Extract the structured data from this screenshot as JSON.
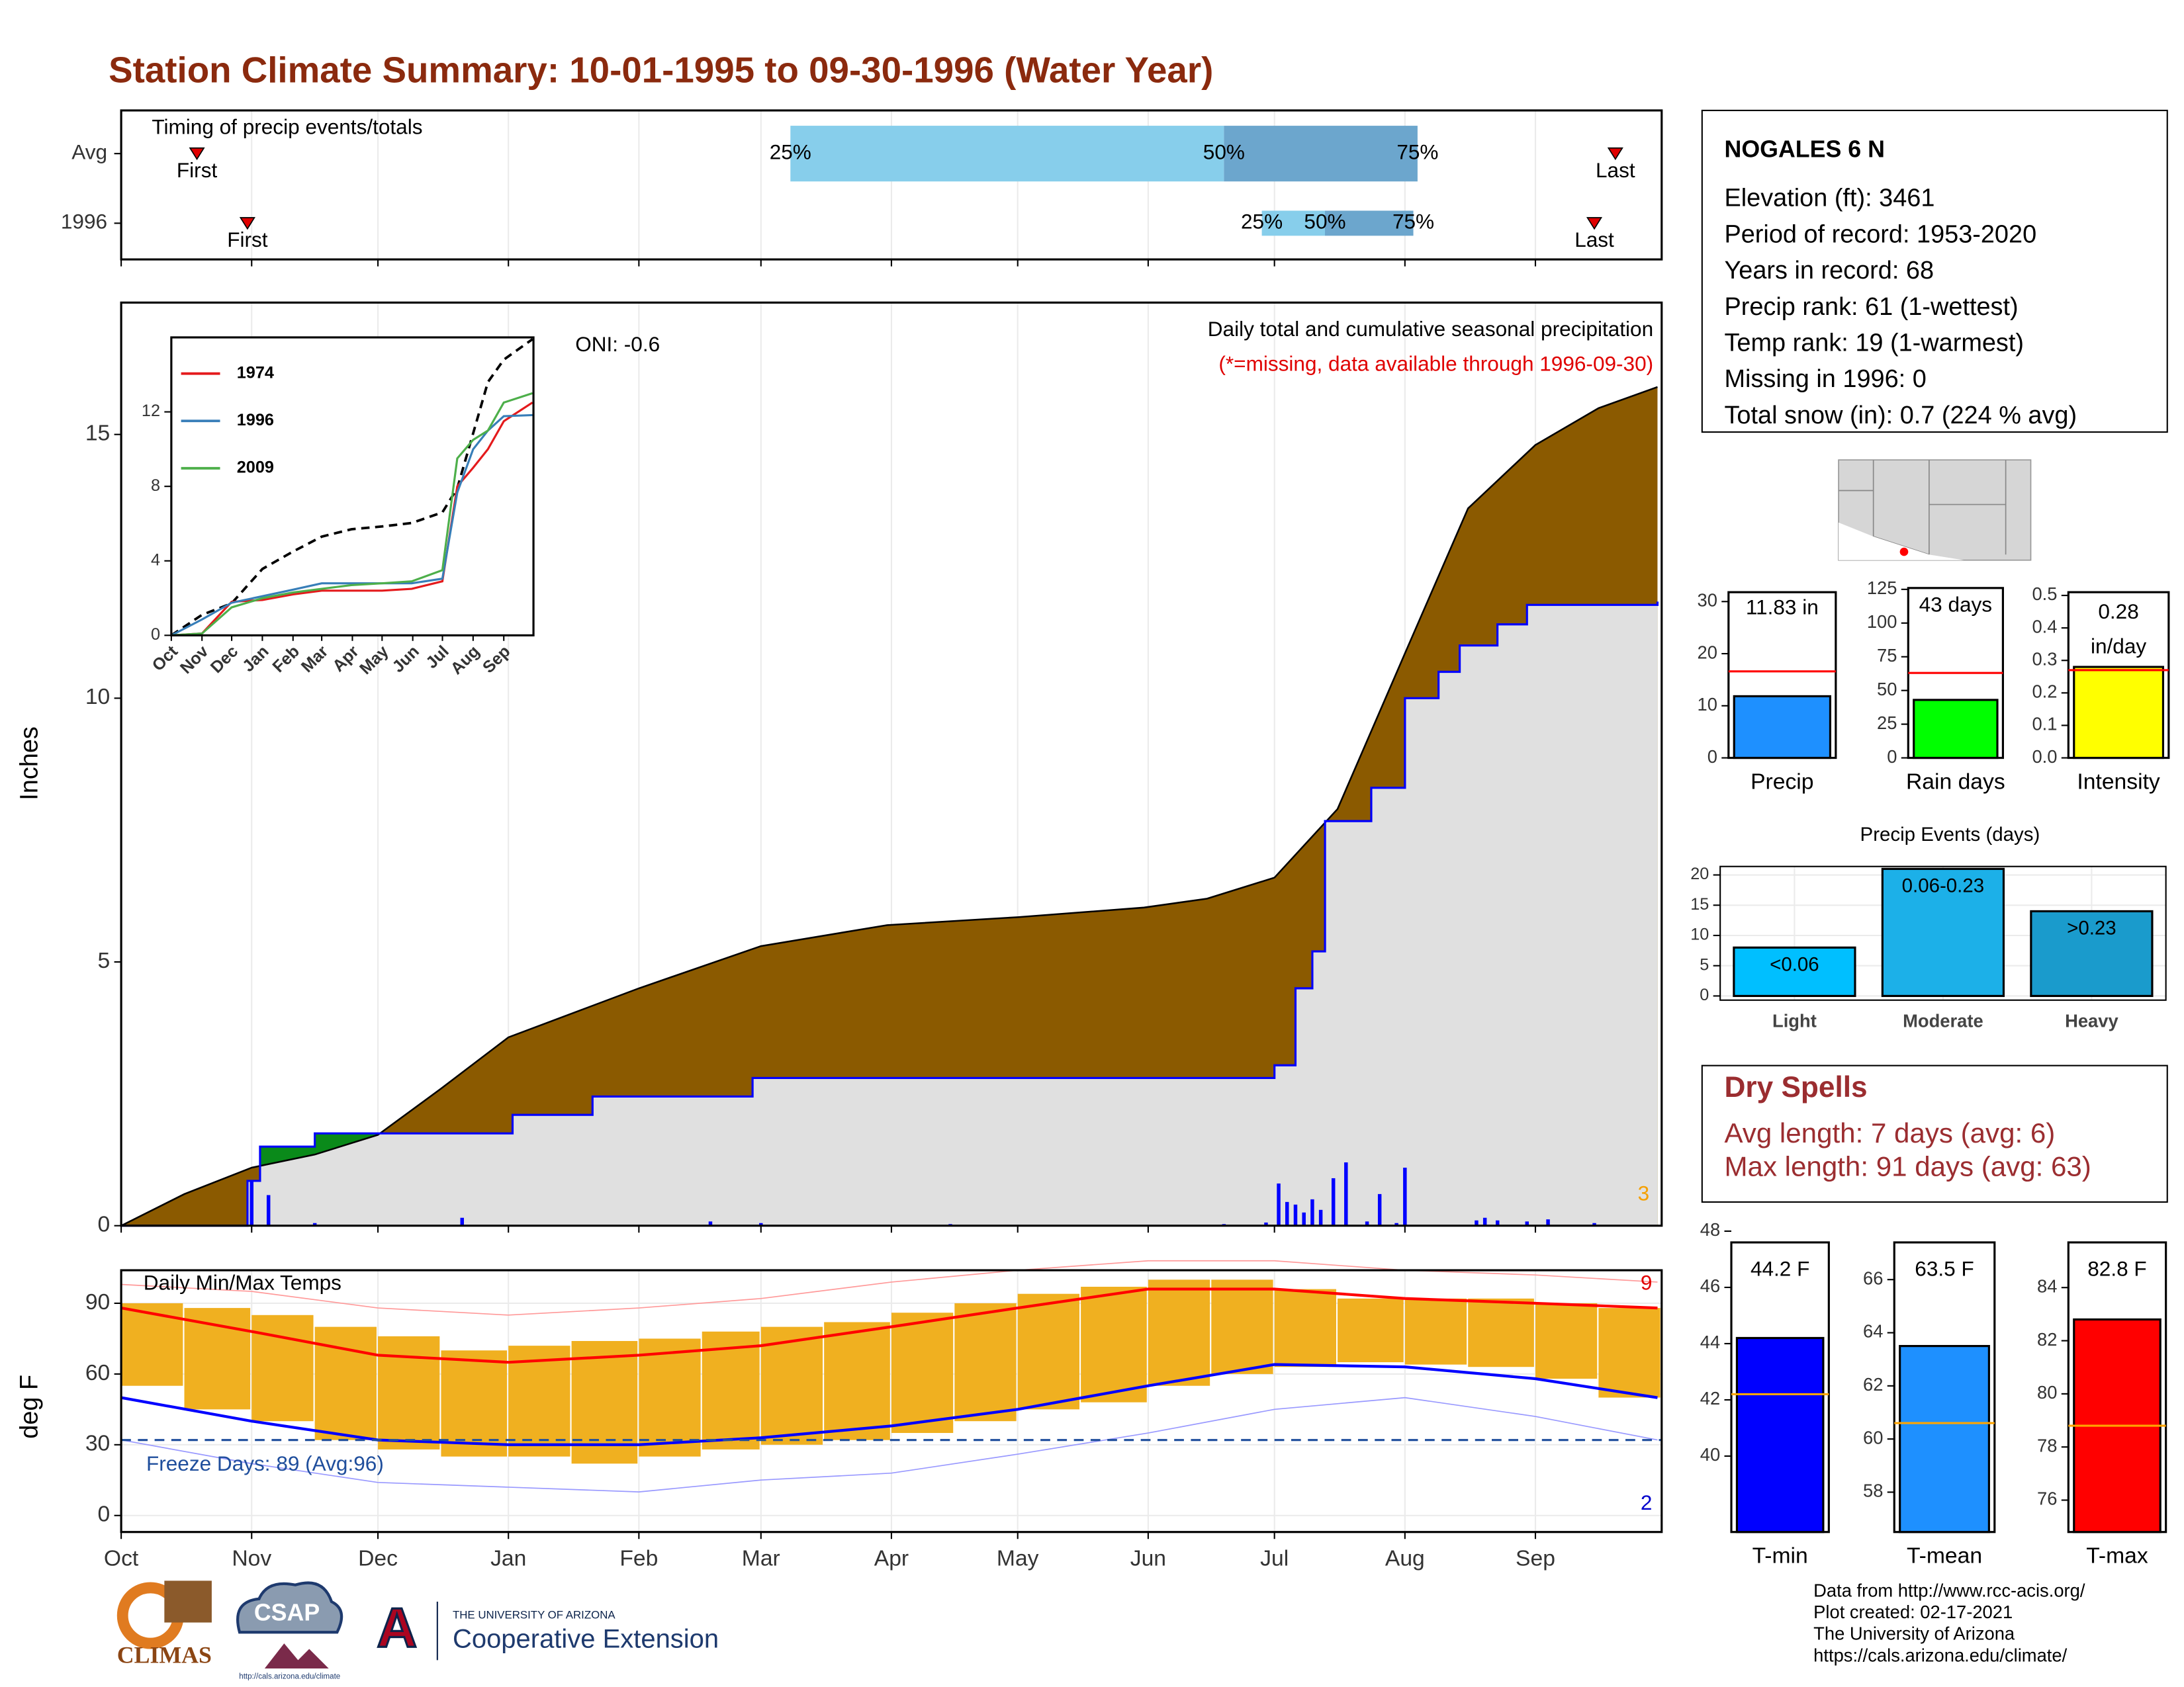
{
  "title": "Station Climate Summary: 10-01-1995 to 09-30-1996 (Water Year)",
  "chart_data": [
    {
      "type": "timing",
      "title": "Timing of precip events/totals",
      "xlim": [
        0,
        366
      ],
      "xticks": [
        {
          "value": 0,
          "label": "Oct"
        },
        {
          "value": 31,
          "label": "Nov"
        },
        {
          "value": 61,
          "label": "Dec"
        },
        {
          "value": 92,
          "label": "Jan"
        },
        {
          "value": 123,
          "label": "Feb"
        },
        {
          "value": 152,
          "label": "Mar"
        },
        {
          "value": 183,
          "label": "Apr"
        },
        {
          "value": 213,
          "label": "May"
        },
        {
          "value": 244,
          "label": "Jun"
        },
        {
          "value": 274,
          "label": "Jul"
        },
        {
          "value": 305,
          "label": "Aug"
        },
        {
          "value": 336,
          "label": "Sep"
        }
      ],
      "rows": [
        {
          "name": "Avg",
          "first": 18,
          "last": 355,
          "quartiles": [
            159,
            262,
            308
          ]
        },
        {
          "name": "1996",
          "first": 30,
          "last": 350,
          "quartiles": [
            271,
            286,
            307
          ]
        }
      ],
      "quartile_labels": [
        "25%",
        "50%",
        "75%"
      ],
      "first_label": "First",
      "last_label": "Last",
      "colors": [
        "#87ceeb",
        "#6ca6cd"
      ],
      "marker_color": "#e00000",
      "grid": true
    },
    {
      "type": "area",
      "title": "Daily total and cumulative seasonal precipitation",
      "note": "(*=missing, data available through 1996-09-30)",
      "oni": "ONI: -0.6",
      "corner_label": "3",
      "ylabel": "Inches",
      "xlim": [
        0,
        366
      ],
      "xticks": [
        {
          "value": 0,
          "label": "Oct"
        },
        {
          "value": 31,
          "label": "Nov"
        },
        {
          "value": 61,
          "label": "Dec"
        },
        {
          "value": 92,
          "label": "Jan"
        },
        {
          "value": 123,
          "label": "Feb"
        },
        {
          "value": 152,
          "label": "Mar"
        },
        {
          "value": 183,
          "label": "Apr"
        },
        {
          "value": 213,
          "label": "May"
        },
        {
          "value": 244,
          "label": "Jun"
        },
        {
          "value": 274,
          "label": "Jul"
        },
        {
          "value": 305,
          "label": "Aug"
        },
        {
          "value": 336,
          "label": "Sep"
        }
      ],
      "ylim": [
        0,
        17.5
      ],
      "yticks": [
        0,
        5,
        10,
        15
      ],
      "grid": true,
      "series": [
        {
          "color": "#8b5a00",
          "x": [
            0,
            15,
            31,
            46,
            61,
            76,
            92,
            123,
            152,
            182,
            213,
            243,
            258,
            274,
            289,
            305,
            320,
            336,
            351,
            365
          ],
          "values": [
            0,
            0.6,
            1.1,
            1.35,
            1.72,
            2.6,
            3.57,
            4.5,
            5.3,
            5.7,
            5.85,
            6.03,
            6.2,
            6.6,
            7.9,
            10.85,
            13.6,
            14.8,
            15.5,
            15.9
          ]
        },
        {
          "color": "#0000ff",
          "fill": "#e0e0e0",
          "step": true,
          "x": [
            0,
            30,
            33,
            46,
            72,
            93,
            112,
            150,
            262,
            274,
            279,
            283,
            286,
            297,
            305,
            313,
            318,
            327,
            334,
            365
          ],
          "values": [
            0,
            0.85,
            1.5,
            1.75,
            1.75,
            2.1,
            2.45,
            2.8,
            2.8,
            3.04,
            4.5,
            5.2,
            7.67,
            8.3,
            10.0,
            10.5,
            11.0,
            11.4,
            11.77,
            11.83
          ]
        }
      ],
      "surplus_color": "#0a8a1a",
      "daily": {
        "color": "#0000ff",
        "x": [
          31,
          35,
          46,
          81,
          140,
          152,
          197,
          262,
          272,
          275,
          277,
          279,
          281,
          283,
          285,
          288,
          291,
          296,
          299,
          303,
          305,
          322,
          324,
          327,
          334,
          339,
          350
        ],
        "values": [
          0.85,
          0.58,
          0.05,
          0.15,
          0.08,
          0.05,
          0.03,
          0.03,
          0.06,
          0.8,
          0.45,
          0.4,
          0.25,
          0.5,
          0.3,
          0.9,
          1.2,
          0.08,
          0.6,
          0.05,
          1.1,
          0.1,
          0.15,
          0.1,
          0.08,
          0.12,
          0.05
        ]
      }
    },
    {
      "type": "line",
      "xlim": [
        0,
        366
      ],
      "xticks": [
        {
          "value": 0,
          "label": "Oct"
        },
        {
          "value": 31,
          "label": "Nov"
        },
        {
          "value": 61,
          "label": "Dec"
        },
        {
          "value": 92,
          "label": "Jan"
        },
        {
          "value": 123,
          "label": "Feb"
        },
        {
          "value": 152,
          "label": "Mar"
        },
        {
          "value": 183,
          "label": "Apr"
        },
        {
          "value": 213,
          "label": "May"
        },
        {
          "value": 244,
          "label": "Jun"
        },
        {
          "value": 274,
          "label": "Jul"
        },
        {
          "value": 305,
          "label": "Aug"
        },
        {
          "value": 336,
          "label": "Sep"
        }
      ],
      "ylim": [
        0,
        16
      ],
      "yticks": [
        0,
        4,
        8,
        12
      ],
      "x": [
        0,
        31,
        61,
        92,
        123,
        152,
        182,
        213,
        243,
        274,
        289,
        305,
        320,
        336,
        365
      ],
      "series": [
        {
          "color": "#000000",
          "dash": true,
          "values": [
            0,
            1.1,
            1.72,
            3.57,
            4.5,
            5.3,
            5.7,
            5.85,
            6.03,
            6.6,
            7.9,
            10.85,
            13.6,
            14.8,
            15.9
          ]
        },
        {
          "name": "1974",
          "color": "#e41a1c",
          "values": [
            0,
            0.1,
            1.8,
            1.9,
            2.2,
            2.4,
            2.4,
            2.4,
            2.5,
            2.9,
            8.0,
            9.0,
            10.0,
            11.5,
            12.5
          ]
        },
        {
          "name": "1996",
          "color": "#377eb8",
          "values": [
            0,
            0.85,
            1.75,
            2.1,
            2.45,
            2.8,
            2.8,
            2.8,
            2.8,
            3.04,
            7.67,
            10.0,
            11.0,
            11.77,
            11.83
          ]
        },
        {
          "name": "2009",
          "color": "#4daf4a",
          "values": [
            0,
            0.1,
            1.5,
            2.0,
            2.3,
            2.5,
            2.7,
            2.8,
            2.9,
            3.5,
            9.5,
            10.5,
            11.0,
            12.5,
            13.0
          ]
        }
      ]
    },
    {
      "type": "range-bar",
      "title": "Daily Min/Max Temps",
      "annotation": "Freeze Days: 89 (Avg:96)",
      "max_days_label": "9",
      "min_days_label": "2",
      "ylabel": "deg F",
      "xlim": [
        0,
        366
      ],
      "xticks": [
        {
          "value": 0,
          "label": "Oct"
        },
        {
          "value": 31,
          "label": "Nov"
        },
        {
          "value": 61,
          "label": "Dec"
        },
        {
          "value": 92,
          "label": "Jan"
        },
        {
          "value": 123,
          "label": "Feb"
        },
        {
          "value": 152,
          "label": "Mar"
        },
        {
          "value": 183,
          "label": "Apr"
        },
        {
          "value": 213,
          "label": "May"
        },
        {
          "value": 244,
          "label": "Jun"
        },
        {
          "value": 274,
          "label": "Jul"
        },
        {
          "value": 305,
          "label": "Aug"
        },
        {
          "value": 336,
          "label": "Sep"
        }
      ],
      "ylim": [
        -7,
        104
      ],
      "yticks": [
        0,
        30,
        60,
        90
      ],
      "grid": true,
      "freeze_line": 32,
      "bars": {
        "color": "#f0b020",
        "x": [
          0,
          15,
          31,
          46,
          61,
          76,
          92,
          107,
          123,
          138,
          152,
          167,
          183,
          198,
          213,
          228,
          244,
          259,
          274,
          289,
          305,
          320,
          336,
          351
        ],
        "low": [
          55,
          45,
          40,
          32,
          28,
          25,
          25,
          22,
          25,
          28,
          30,
          32,
          35,
          40,
          45,
          48,
          55,
          60,
          63,
          65,
          64,
          63,
          58,
          50
        ],
        "high": [
          90,
          88,
          85,
          80,
          76,
          70,
          72,
          74,
          75,
          78,
          80,
          82,
          86,
          90,
          94,
          97,
          100,
          100,
          96,
          92,
          92,
          92,
          90,
          88
        ]
      },
      "x": [
        0,
        31,
        61,
        92,
        123,
        152,
        183,
        213,
        244,
        274,
        305,
        336,
        365
      ],
      "series": [
        {
          "color": "#ff9999",
          "width": 0.8,
          "values": [
            98,
            95,
            88,
            85,
            88,
            92,
            99,
            104,
            108,
            108,
            104,
            102,
            99
          ]
        },
        {
          "color": "#9999ff",
          "width": 0.8,
          "values": [
            32,
            22,
            14,
            12,
            10,
            15,
            18,
            26,
            35,
            45,
            50,
            42,
            32
          ]
        },
        {
          "color": "#ff0000",
          "width": 2,
          "values": [
            88,
            78,
            68,
            65,
            68,
            72,
            80,
            88,
            96,
            96,
            92,
            90,
            88
          ]
        },
        {
          "color": "#0000ff",
          "width": 2,
          "values": [
            50,
            40,
            32,
            30,
            30,
            33,
            38,
            45,
            55,
            64,
            63,
            58,
            50
          ]
        }
      ]
    },
    {
      "type": "single-bar",
      "category": "Precip",
      "value": 11.83,
      "value_label": "11.83 in",
      "average": 16.6,
      "color": "#1e90ff",
      "average_color": "#ff0000",
      "ylim": [
        0,
        31.8
      ],
      "yticks": [
        0,
        10,
        20,
        30
      ]
    },
    {
      "type": "single-bar",
      "category": "Rain days",
      "value": 43,
      "value_label": "43 days",
      "average": 63,
      "color": "#00ff00",
      "average_color": "#ff0000",
      "ylim": [
        0,
        126
      ],
      "yticks": [
        0,
        25,
        50,
        75,
        100,
        125
      ]
    },
    {
      "type": "single-bar",
      "category": "Intensity",
      "value": 0.28,
      "value_label": "0.28",
      "unit": "in/day",
      "average": 0.27,
      "color": "#ffff00",
      "average_color": "#ff0000",
      "ylim": [
        0,
        0.51
      ],
      "yticks": [
        {
          "value": 0,
          "label": "0.0"
        },
        {
          "value": 0.1,
          "label": "0.1"
        },
        {
          "value": 0.2,
          "label": "0.2"
        },
        {
          "value": 0.3,
          "label": "0.3"
        },
        {
          "value": 0.4,
          "label": "0.4"
        },
        {
          "value": 0.5,
          "label": "0.5"
        }
      ]
    },
    {
      "type": "bar",
      "title": "Precip Events (days)",
      "categories": [
        "Light",
        "Moderate",
        "Heavy"
      ],
      "values": [
        8,
        21,
        14
      ],
      "bin_labels": [
        "<0.06",
        "0.06-0.23",
        ">0.23"
      ],
      "colors": [
        "#00bfff",
        "#1cb0e8",
        "#1a9bcc"
      ],
      "ylim": [
        0,
        21.4
      ],
      "yticks": [
        0,
        5,
        10,
        15,
        20
      ],
      "grid": true
    },
    {
      "type": "single-bar",
      "category": "T-min",
      "value": 44.2,
      "value_label": "44.2 F",
      "average": 42.2,
      "color": "#0000ff",
      "average_color": "#ffa500",
      "ylim": [
        37.3,
        47.6
      ],
      "yticks": [
        40,
        42,
        44,
        46,
        48
      ]
    },
    {
      "type": "single-bar",
      "category": "T-mean",
      "value": 63.5,
      "value_label": "63.5 F",
      "average": 60.6,
      "color": "#1e90ff",
      "average_color": "#ffa500",
      "ylim": [
        56.5,
        67.4
      ],
      "yticks": [
        58,
        60,
        62,
        64,
        66
      ]
    },
    {
      "type": "single-bar",
      "category": "T-max",
      "value": 82.8,
      "value_label": "82.8 F",
      "average": 78.8,
      "color": "#ff0000",
      "average_color": "#ffa500",
      "ylim": [
        74.8,
        85.7
      ],
      "yticks": [
        76,
        78,
        80,
        82,
        84
      ]
    }
  ],
  "station": {
    "name": "NOGALES 6 N",
    "lines": [
      "Elevation (ft): 3461",
      "Period of record: 1953-2020",
      "Years in record: 68",
      "Precip rank: 61 (1-wettest)",
      "Temp rank: 19 (1-warmest)",
      "Missing in 1996: 0",
      "Total snow (in): 0.7 (224 % avg)"
    ]
  },
  "dry_spells": {
    "title": "Dry Spells",
    "lines": [
      "Avg length: 7 days (avg: 6)",
      "Max length: 91 days (avg: 63)"
    ]
  },
  "footer": [
    "Data from http://www.rcc-acis.org/",
    "Plot created: 02-17-2021",
    "The University of Arizona",
    "https://cals.arizona.edu/climate/"
  ],
  "logos": {
    "climas": "CLIMAS",
    "csap": "CSAP",
    "csap_url": "http://cals.arizona.edu/climate",
    "ua_letter": "A",
    "ua_name": "THE UNIVERSITY OF ARIZONA",
    "ua_unit": "Cooperative Extension"
  }
}
